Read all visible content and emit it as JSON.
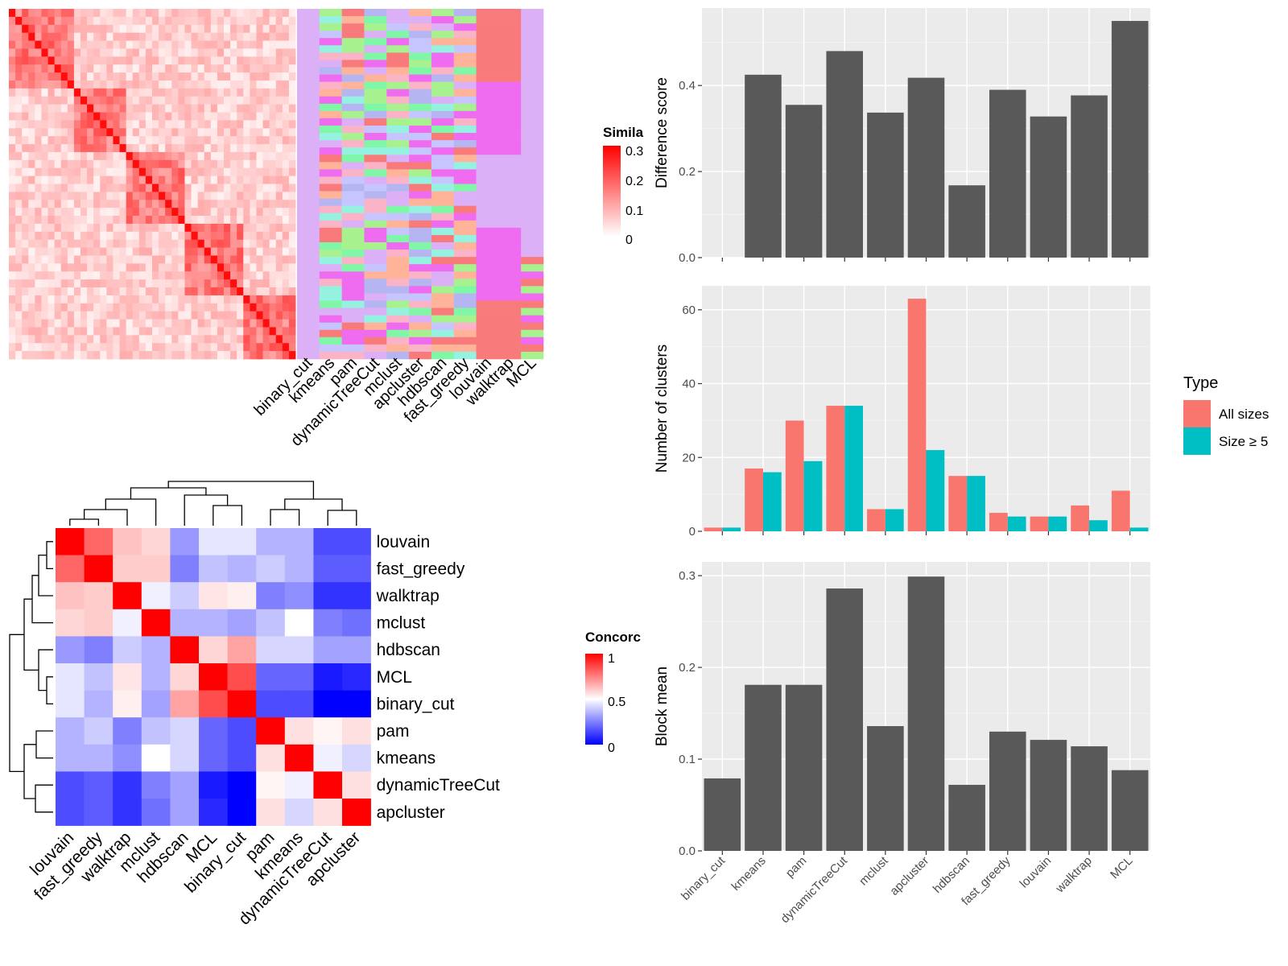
{
  "colors": {
    "panel_bg": "#ebebeb",
    "grid": "#ffffff",
    "bar": "#595959",
    "all_sizes": "#f8766d",
    "size5": "#00bfc4",
    "sim_high": "#ff0000",
    "conc_low": "#0000ff"
  },
  "similarity_heatmap": {
    "methods": [
      "binary_cut",
      "kmeans",
      "pam",
      "dynamicTreeCut",
      "mclust",
      "apcluster",
      "hdbscan",
      "fast_greedy",
      "louvain",
      "walktrap",
      "MCL"
    ],
    "legend": {
      "title": "Simila",
      "ticks": [
        "0.3",
        "0.2",
        "0.1",
        "0"
      ]
    }
  },
  "concordance_heatmap": {
    "row_labels": [
      "louvain",
      "fast_greedy",
      "walktrap",
      "mclust",
      "hdbscan",
      "MCL",
      "binary_cut",
      "pam",
      "kmeans",
      "dynamicTreeCut",
      "apcluster"
    ],
    "col_labels": [
      "louvain",
      "fast_greedy",
      "walktrap",
      "mclust",
      "hdbscan",
      "MCL",
      "binary_cut",
      "pam",
      "kmeans",
      "dynamicTreeCut",
      "apcluster"
    ],
    "values": [
      [
        1.0,
        0.8,
        0.62,
        0.58,
        0.3,
        0.45,
        0.45,
        0.35,
        0.35,
        0.15,
        0.15
      ],
      [
        0.8,
        1.0,
        0.6,
        0.6,
        0.25,
        0.38,
        0.35,
        0.4,
        0.35,
        0.18,
        0.18
      ],
      [
        0.62,
        0.6,
        1.0,
        0.47,
        0.4,
        0.55,
        0.53,
        0.25,
        0.28,
        0.1,
        0.1
      ],
      [
        0.58,
        0.6,
        0.47,
        1.0,
        0.35,
        0.35,
        0.32,
        0.38,
        0.5,
        0.25,
        0.22
      ],
      [
        0.3,
        0.25,
        0.4,
        0.35,
        1.0,
        0.58,
        0.68,
        0.42,
        0.42,
        0.32,
        0.32
      ],
      [
        0.45,
        0.38,
        0.55,
        0.35,
        0.58,
        1.0,
        0.85,
        0.2,
        0.2,
        0.05,
        0.08
      ],
      [
        0.45,
        0.35,
        0.53,
        0.32,
        0.68,
        0.85,
        1.0,
        0.15,
        0.15,
        0.0,
        0.0
      ],
      [
        0.35,
        0.4,
        0.25,
        0.38,
        0.42,
        0.2,
        0.15,
        1.0,
        0.56,
        0.52,
        0.56
      ],
      [
        0.35,
        0.35,
        0.28,
        0.5,
        0.42,
        0.2,
        0.15,
        0.56,
        1.0,
        0.47,
        0.42
      ],
      [
        0.15,
        0.18,
        0.1,
        0.25,
        0.32,
        0.05,
        0.0,
        0.52,
        0.47,
        1.0,
        0.56
      ],
      [
        0.15,
        0.18,
        0.1,
        0.22,
        0.32,
        0.08,
        0.0,
        0.56,
        0.42,
        0.56,
        1.0
      ]
    ],
    "legend": {
      "title": "Concorc",
      "ticks": [
        "1",
        "0.5",
        "0"
      ]
    }
  },
  "chart_data": [
    {
      "type": "bar",
      "categories": [
        "binary_cut",
        "kmeans",
        "pam",
        "dynamicTreeCut",
        "mclust",
        "apcluster",
        "hdbscan",
        "fast_greedy",
        "louvain",
        "walktrap",
        "MCL"
      ],
      "values": [
        0.0,
        0.425,
        0.355,
        0.48,
        0.337,
        0.418,
        0.168,
        0.39,
        0.328,
        0.377,
        0.55
      ],
      "ylabel": "Difference score",
      "yticks": [
        0.0,
        0.2,
        0.4
      ],
      "ylim": [
        0,
        0.58
      ],
      "ticklabels": [
        "0.0",
        "0.2",
        "0.4"
      ]
    },
    {
      "type": "bar",
      "categories": [
        "binary_cut",
        "kmeans",
        "pam",
        "dynamicTreeCut",
        "mclust",
        "apcluster",
        "hdbscan",
        "fast_greedy",
        "louvain",
        "walktrap",
        "MCL"
      ],
      "series": [
        {
          "name": "All sizes",
          "values": [
            1,
            17,
            30,
            34,
            6,
            63,
            15,
            5,
            4,
            7,
            11
          ]
        },
        {
          "name": "Size ≥ 5",
          "values": [
            1,
            16,
            19,
            34,
            6,
            22,
            15,
            4,
            4,
            3,
            1
          ]
        }
      ],
      "ylabel": "Number of clusters",
      "yticks": [
        0,
        20,
        40,
        60
      ],
      "ylim": [
        0,
        66.5
      ],
      "ticklabels": [
        "0",
        "20",
        "40",
        "60"
      ],
      "legend": {
        "title": "Type",
        "position": "right"
      }
    },
    {
      "type": "bar",
      "categories": [
        "binary_cut",
        "kmeans",
        "pam",
        "dynamicTreeCut",
        "mclust",
        "apcluster",
        "hdbscan",
        "fast_greedy",
        "louvain",
        "walktrap",
        "MCL"
      ],
      "values": [
        0.079,
        0.181,
        0.181,
        0.286,
        0.136,
        0.299,
        0.072,
        0.13,
        0.121,
        0.114,
        0.088
      ],
      "ylabel": "Block mean",
      "yticks": [
        0.0,
        0.1,
        0.2,
        0.3
      ],
      "ylim": [
        0,
        0.315
      ],
      "ticklabels": [
        "0.0",
        "0.1",
        "0.2",
        "0.3"
      ]
    }
  ]
}
